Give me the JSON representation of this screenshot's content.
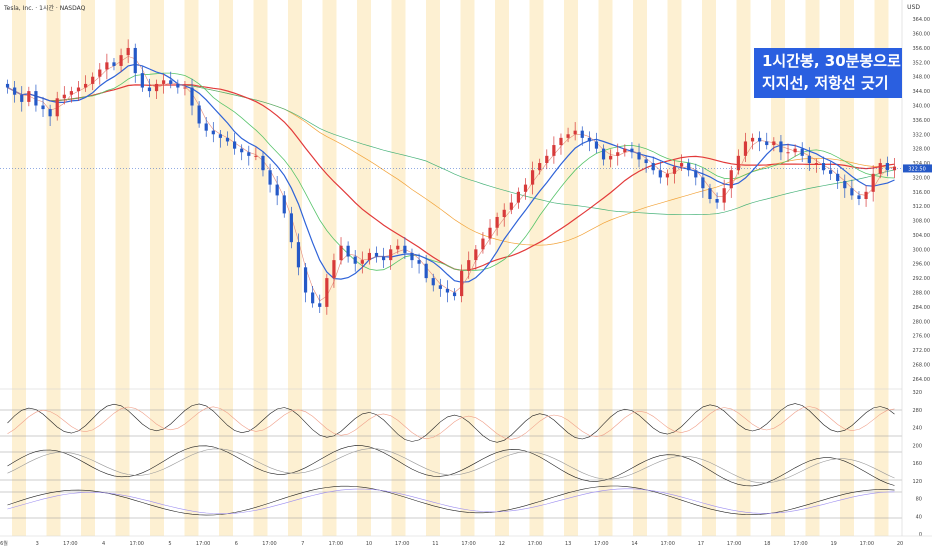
{
  "header": {
    "symbol_line": "Tesla, Inc. · 1시간 · NASDAQ",
    "currency": "USD"
  },
  "annotation": {
    "line1": "1시간봉, 30분봉으로",
    "line2": "지지선, 저항선 긋기"
  },
  "colors": {
    "session_band": "#fdf0d2",
    "up_candle": "#d73a3a",
    "down_candle": "#2559c7",
    "ma_red": "#e23a3a",
    "ma_blue": "#2f63d8",
    "ma_green": "#57c46a",
    "ma_orange": "#f2a33a",
    "ma_teal": "#49b37a",
    "ma_pink": "#e58a7a",
    "last_price_bg": "#2559c7"
  },
  "chart_data": [
    {
      "type": "candlestick",
      "title": "Tesla, Inc. · 1시간 · NASDAQ",
      "ylim": [
        262,
        366
      ],
      "y_ticks": [
        "364.00",
        "360.00",
        "356.00",
        "352.00",
        "348.00",
        "344.00",
        "340.00",
        "336.00",
        "332.00",
        "328.00",
        "324.00",
        "320.00",
        "316.00",
        "312.00",
        "308.00",
        "304.00",
        "300.00",
        "296.00",
        "292.00",
        "288.00",
        "284.00",
        "280.00",
        "276.00",
        "272.00",
        "268.00",
        "264.00"
      ],
      "x_labels": [
        "6월",
        "3",
        "17:00",
        "4",
        "17:00",
        "5",
        "17:00",
        "6",
        "17:00",
        "7",
        "17:00",
        "10",
        "17:00",
        "11",
        "17:00",
        "12",
        "17:00",
        "13",
        "17:00",
        "14",
        "17:00",
        "17",
        "17:00",
        "18",
        "17:00",
        "19",
        "17:00",
        "20"
      ],
      "last_price": "322.50",
      "closes": [
        345,
        343,
        341,
        344,
        340,
        339,
        337,
        342,
        343,
        344,
        345,
        346,
        348,
        350,
        352,
        351,
        354,
        356,
        349,
        345,
        344,
        346,
        347,
        346,
        345,
        345,
        340,
        335,
        333,
        332,
        331,
        330,
        328,
        327,
        326,
        326,
        322,
        318,
        315,
        310,
        302,
        295,
        288,
        285,
        284,
        292,
        297,
        301,
        298,
        296,
        297,
        299,
        298,
        297,
        300,
        301,
        299,
        297,
        296,
        292,
        290,
        289,
        288,
        287,
        294,
        297,
        300,
        303,
        306,
        309,
        311,
        313,
        316,
        318,
        322,
        324,
        326,
        329,
        331,
        332,
        333,
        331,
        330,
        328,
        325,
        326,
        327,
        328,
        327,
        325,
        324,
        322,
        320,
        321,
        323,
        324,
        322,
        320,
        317,
        314,
        313,
        317,
        322,
        326,
        330,
        331,
        330,
        329,
        330,
        327,
        327,
        328,
        326,
        324,
        324,
        322,
        321,
        319,
        317,
        315,
        314,
        316,
        321,
        324,
        322,
        323
      ]
    },
    {
      "type": "line",
      "name_pane": "oscillator-1",
      "ylim": [
        0,
        320
      ],
      "y_ticks": [
        "320",
        "280",
        "240",
        "200",
        "160",
        "120",
        "80",
        "40",
        "0"
      ],
      "levels": [
        280,
        200
      ]
    }
  ]
}
